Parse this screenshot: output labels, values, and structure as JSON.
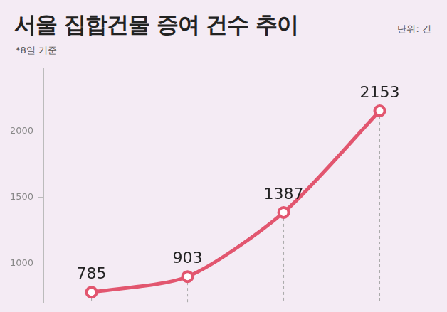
{
  "chart_data": {
    "type": "line",
    "title": "서울 집합건물 증여 건수 추이",
    "subtitle": "*8일 기준",
    "annotations": [
      "단위: 건"
    ],
    "categories": [
      null,
      null,
      null,
      null
    ],
    "values": [
      785,
      903,
      1387,
      2153
    ],
    "color": "#e2566f",
    "marker": "circle",
    "ylim": [
      710,
      2480
    ],
    "yticks": [
      1000,
      1500,
      2000
    ],
    "grid": false,
    "data_labels": true,
    "tick_labels": "y"
  }
}
